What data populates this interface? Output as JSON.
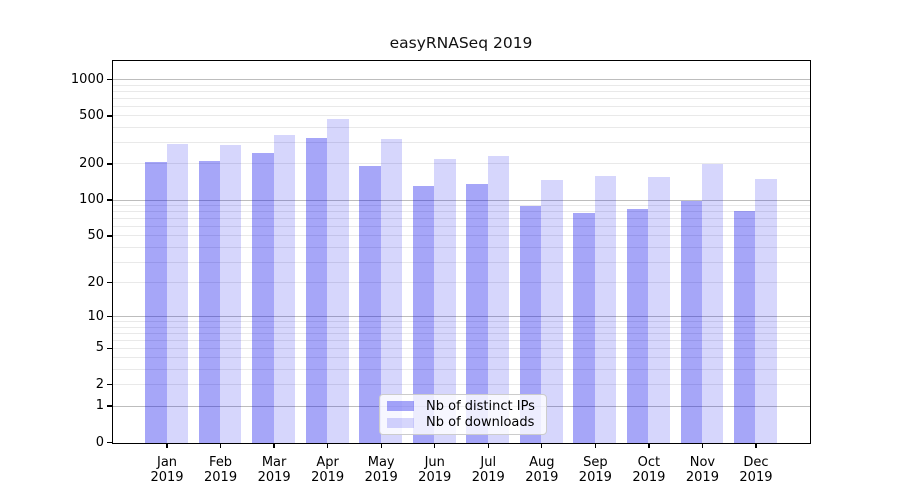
{
  "chart_data": {
    "type": "bar",
    "title": "easyRNASeq 2019",
    "year_label": "2019",
    "months": [
      "Jan",
      "Feb",
      "Mar",
      "Apr",
      "May",
      "Jun",
      "Jul",
      "Aug",
      "Sep",
      "Oct",
      "Nov",
      "Dec"
    ],
    "series": [
      {
        "name": "Nb of distinct IPs",
        "color": "rgba(0,0,235,0.35)",
        "values": [
          209,
          212,
          251,
          334,
          195,
          133,
          137,
          90,
          79,
          85,
          99,
          82
        ]
      },
      {
        "name": "Nb of downloads",
        "color": "rgba(0,0,235,0.16)",
        "values": [
          295,
          291,
          350,
          478,
          328,
          222,
          237,
          149,
          161,
          158,
          201,
          150
        ]
      }
    ],
    "xlabel": "",
    "ylabel": "",
    "yscale": "log1p",
    "ylim": [
      0,
      1410
    ],
    "y_ticks": [
      0,
      1,
      2,
      5,
      10,
      20,
      50,
      100,
      200,
      500,
      1000
    ],
    "y_major_gridlines": [
      1,
      10,
      100,
      1000
    ],
    "y_minor_gridlines": [
      2,
      3,
      4,
      5,
      6,
      7,
      8,
      9,
      20,
      30,
      40,
      50,
      60,
      70,
      80,
      90,
      200,
      300,
      400,
      500,
      600,
      700,
      800,
      900
    ],
    "grid": true,
    "legend_position": "lower center",
    "colors": {
      "major_grid": "#bdbdbd",
      "minor_grid": "#e9e9e9",
      "axis": "#000000",
      "background": "#ffffff"
    }
  }
}
